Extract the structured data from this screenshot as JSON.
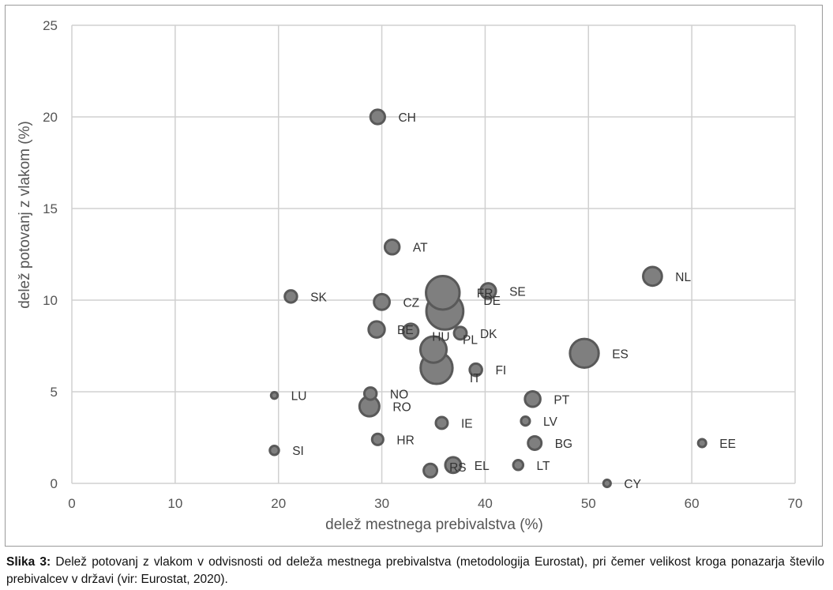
{
  "chart_data": {
    "type": "scatter",
    "variant": "bubble",
    "xlabel": "delež mestnega prebivalstva (%)",
    "ylabel": "delež potovanj z vlakom (%)",
    "xlim": [
      0,
      70
    ],
    "ylim": [
      0,
      25
    ],
    "xticks": [
      0,
      10,
      20,
      30,
      40,
      50,
      60,
      70
    ],
    "yticks": [
      0,
      5,
      10,
      15,
      20,
      25
    ],
    "grid": true,
    "legend": "none",
    "colors": {
      "fill": "#7f7f7f",
      "stroke": "#595959",
      "grid": "#d0d0d0"
    },
    "points": [
      {
        "label": "CH",
        "x": 29.6,
        "y": 20.0,
        "size": 8.6
      },
      {
        "label": "AT",
        "x": 31.0,
        "y": 12.9,
        "size": 8.9
      },
      {
        "label": "NL",
        "x": 56.2,
        "y": 11.3,
        "size": 17.0
      },
      {
        "label": "SK",
        "x": 21.2,
        "y": 10.2,
        "size": 5.4
      },
      {
        "label": "FR",
        "x": 35.9,
        "y": 10.4,
        "size": 67.0
      },
      {
        "label": "SE",
        "x": 40.3,
        "y": 10.5,
        "size": 10.2
      },
      {
        "label": "CZ",
        "x": 30.0,
        "y": 9.9,
        "size": 10.6
      },
      {
        "label": "DE",
        "x": 36.1,
        "y": 9.4,
        "size": 83.0
      },
      {
        "label": "BE",
        "x": 29.5,
        "y": 8.4,
        "size": 11.5
      },
      {
        "label": "HU",
        "x": 32.8,
        "y": 8.3,
        "size": 9.8
      },
      {
        "label": "DK",
        "x": 37.6,
        "y": 8.2,
        "size": 5.8
      },
      {
        "label": "PL",
        "x": 35.0,
        "y": 7.3,
        "size": 38.0
      },
      {
        "label": "ES",
        "x": 49.6,
        "y": 7.1,
        "size": 47.0
      },
      {
        "label": "IT",
        "x": 35.3,
        "y": 6.3,
        "size": 60.0
      },
      {
        "label": "FI",
        "x": 39.1,
        "y": 6.2,
        "size": 5.5
      },
      {
        "label": "LU",
        "x": 19.6,
        "y": 4.8,
        "size": 0.6
      },
      {
        "label": "NO",
        "x": 28.9,
        "y": 4.9,
        "size": 5.4
      },
      {
        "label": "PT",
        "x": 44.6,
        "y": 4.6,
        "size": 10.3
      },
      {
        "label": "RO",
        "x": 28.8,
        "y": 4.2,
        "size": 19.4
      },
      {
        "label": "IE",
        "x": 35.8,
        "y": 3.3,
        "size": 4.9
      },
      {
        "label": "LV",
        "x": 43.9,
        "y": 3.4,
        "size": 1.9
      },
      {
        "label": "HR",
        "x": 29.6,
        "y": 2.4,
        "size": 4.1
      },
      {
        "label": "BG",
        "x": 44.8,
        "y": 2.2,
        "size": 7.0
      },
      {
        "label": "EE",
        "x": 61.0,
        "y": 2.2,
        "size": 1.3
      },
      {
        "label": "SI",
        "x": 19.6,
        "y": 1.8,
        "size": 2.1
      },
      {
        "label": "EL",
        "x": 36.9,
        "y": 1.0,
        "size": 10.7
      },
      {
        "label": "LT",
        "x": 43.2,
        "y": 1.0,
        "size": 2.8
      },
      {
        "label": "RS",
        "x": 34.7,
        "y": 0.7,
        "size": 7.0
      },
      {
        "label": "CY",
        "x": 51.8,
        "y": 0.0,
        "size": 0.9
      }
    ]
  },
  "caption": {
    "label": "Slika 3:",
    "text": "Delež potovanj z vlakom v odvisnosti od deleža mestnega prebivalstva (metodologija Eurostat), pri čemer velikost kroga ponazarja število prebivalcev v državi (vir: Eurostat, 2020)."
  }
}
